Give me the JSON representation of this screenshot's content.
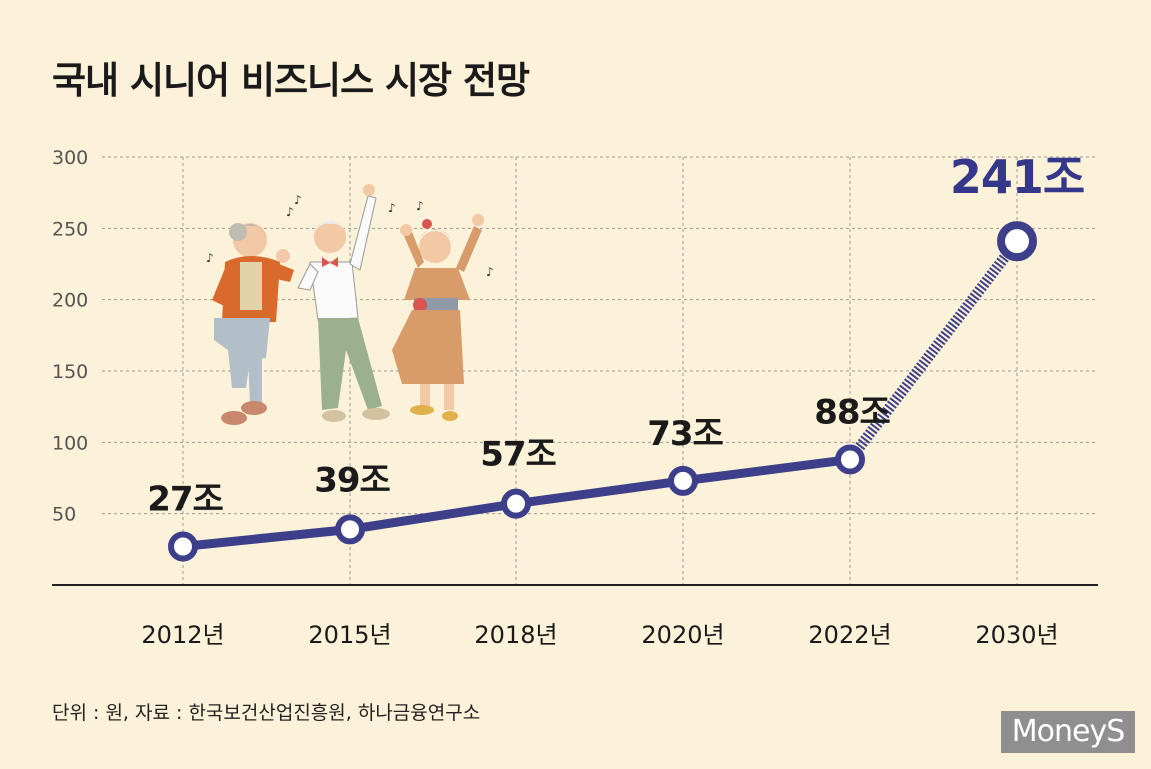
{
  "title": "국내 시니어 비즈니스 시장 전망",
  "source": "단위 : 원, 자료 : 한국보건산업진흥원, 하나금융연구소",
  "logo_text": "MoneyS",
  "colors": {
    "background": "#fcf2d9",
    "line": "#3d3f8a",
    "marker_fill": "#ffffff",
    "grid": "#9a9a9a",
    "axis": "#222222",
    "highlight_label": "#35378a",
    "label": "#1a1a1a"
  },
  "chart_data": {
    "type": "line",
    "title": "국내 시니어 비즈니스 시장 전망",
    "categories": [
      "2012년",
      "2015년",
      "2018년",
      "2020년",
      "2022년",
      "2030년"
    ],
    "values": [
      27,
      39,
      57,
      73,
      88,
      241
    ],
    "data_labels": [
      "27조",
      "39조",
      "57조",
      "73조",
      "88조",
      "241조"
    ],
    "projection_segment": {
      "from": "2022년",
      "to": "2030년",
      "style": "dotted"
    },
    "y_ticks": [
      50,
      100,
      150,
      200,
      250,
      300
    ],
    "ylim": [
      0,
      300
    ],
    "grid": true,
    "xlabel": "",
    "ylabel": ""
  }
}
